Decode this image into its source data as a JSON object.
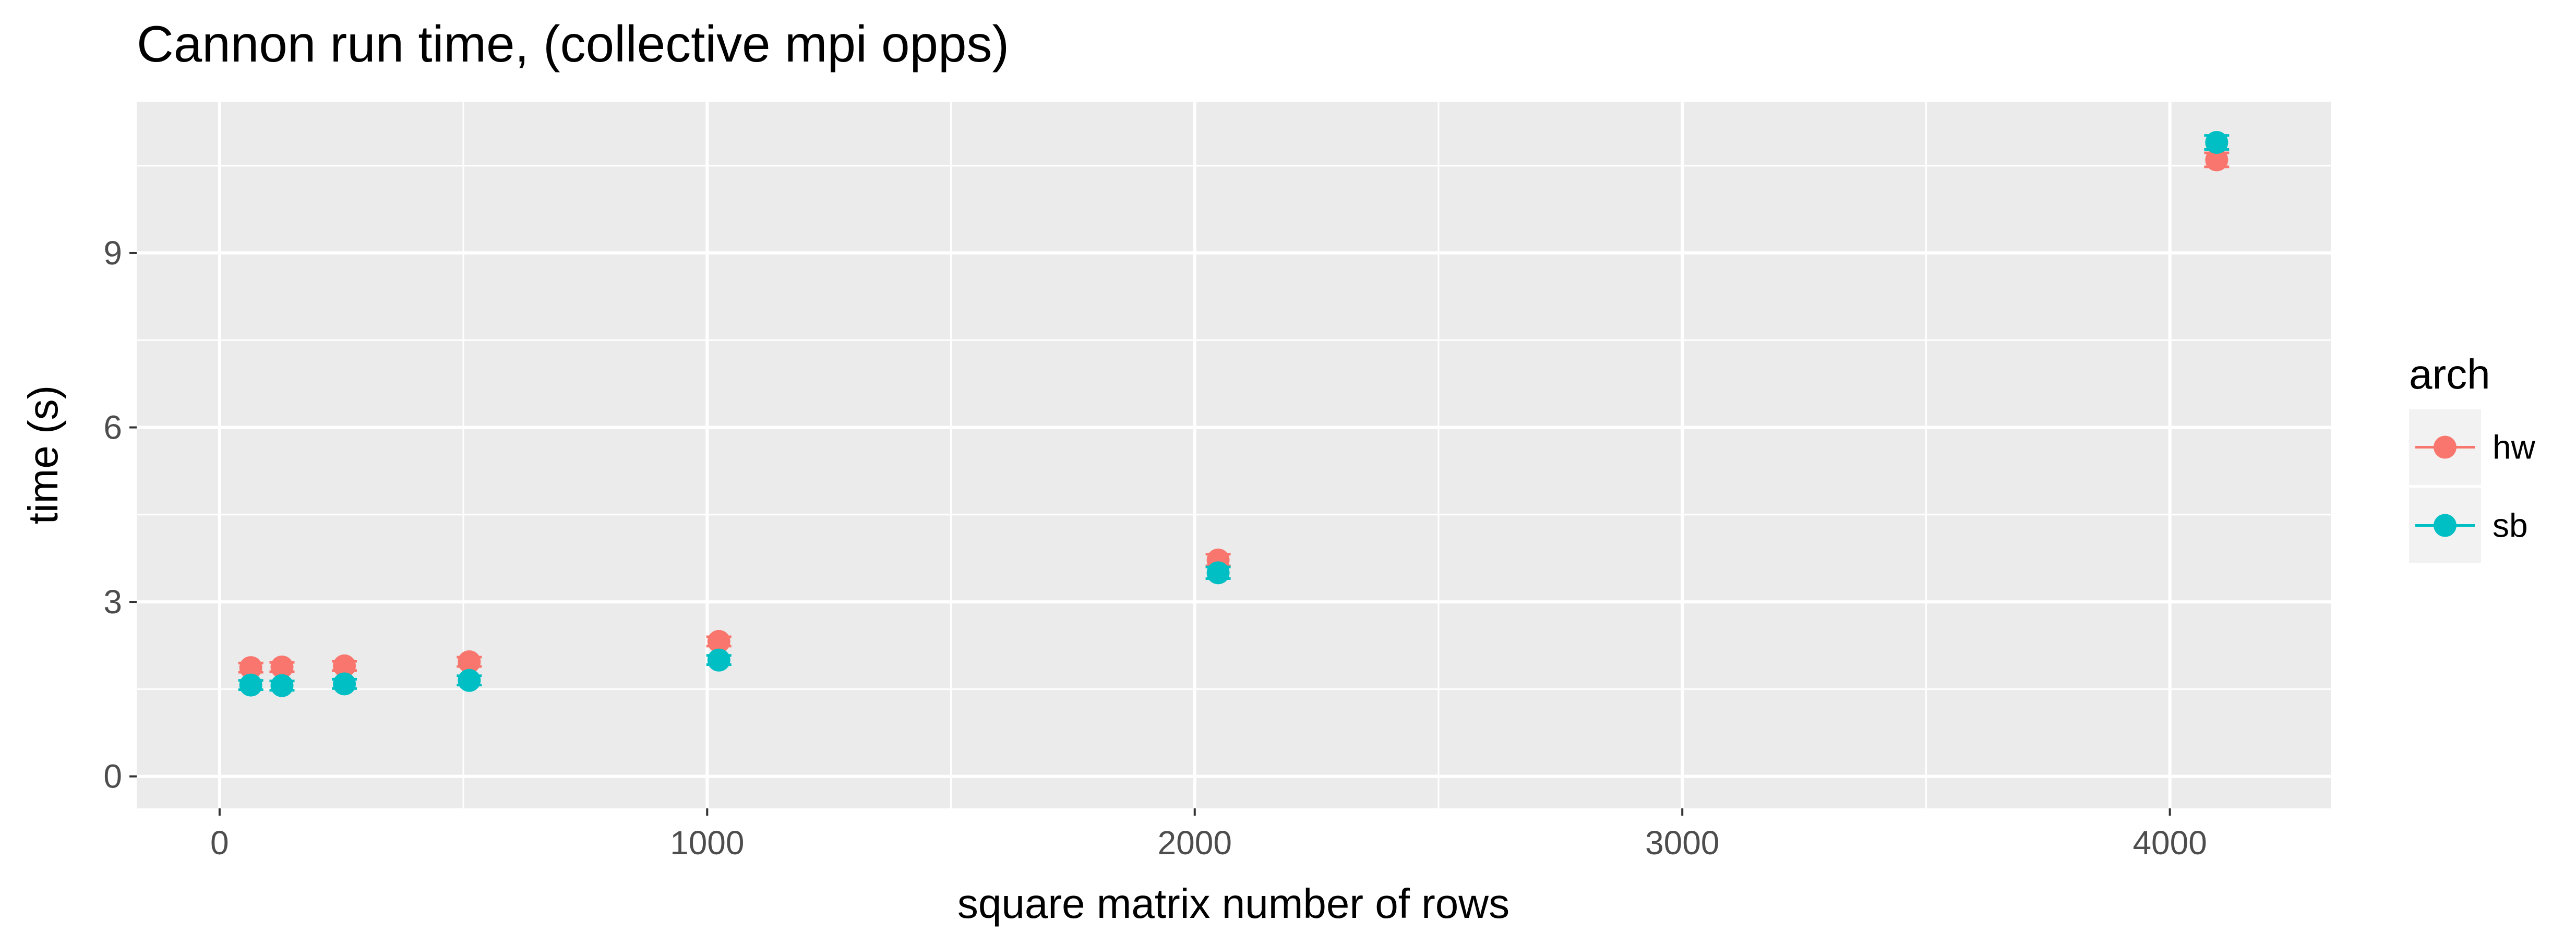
{
  "chart_data": {
    "type": "scatter",
    "title": "Cannon run time, (collective mpi opps)",
    "xlabel": "square matrix number of rows",
    "ylabel": "time (s)",
    "xlim": [
      -170,
      4330
    ],
    "ylim": [
      -0.55,
      11.6
    ],
    "x_ticks": [
      0,
      1000,
      2000,
      3000,
      4000
    ],
    "x_tick_labels": [
      "0",
      "1000",
      "2000",
      "3000",
      "4000"
    ],
    "y_ticks": [
      0,
      3,
      6,
      9
    ],
    "y_tick_labels": [
      "0",
      "3",
      "6",
      "9"
    ],
    "grid": true,
    "error_bars": true,
    "legend": {
      "title": "arch",
      "position": "right"
    },
    "series": [
      {
        "name": "hw",
        "color": "#F8766D",
        "x": [
          64,
          128,
          256,
          512,
          1024,
          2048,
          4096
        ],
        "y": [
          1.87,
          1.88,
          1.9,
          1.97,
          2.32,
          3.72,
          10.6
        ],
        "err": [
          0.08,
          0.08,
          0.08,
          0.08,
          0.08,
          0.1,
          0.12
        ]
      },
      {
        "name": "sb",
        "color": "#00BFC4",
        "x": [
          64,
          128,
          256,
          512,
          1024,
          2048,
          4096
        ],
        "y": [
          1.57,
          1.56,
          1.59,
          1.65,
          2.0,
          3.5,
          10.9
        ],
        "err": [
          0.08,
          0.08,
          0.08,
          0.08,
          0.08,
          0.1,
          0.12
        ]
      }
    ]
  }
}
